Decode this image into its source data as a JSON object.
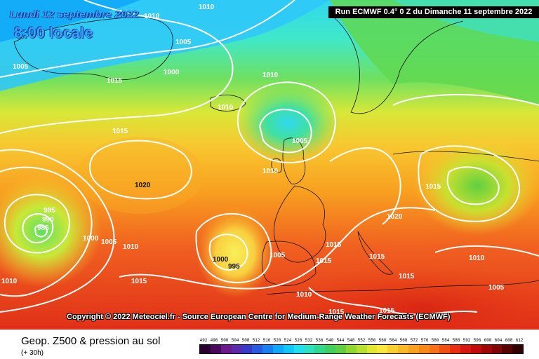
{
  "header": {
    "date": "Lundi 12 septembre 2022",
    "time": "8:00 locale",
    "run": "Run ECMWF 0.4° 0 Z du Dimanche 11 septembre 2022"
  },
  "copyright": "Copyright © 2022 Meteociel.fr - Source European Centre for Medium-Range Weather Forecasts (ECMWF)",
  "footer": {
    "title": "Geop. Z500 & pression au sol",
    "subtitle": "(+ 30h)"
  },
  "scale": {
    "labels": [
      "492",
      "496",
      "500",
      "504",
      "508",
      "512",
      "516",
      "520",
      "524",
      "528",
      "532",
      "536",
      "540",
      "544",
      "548",
      "552",
      "556",
      "560",
      "564",
      "568",
      "572",
      "576",
      "580",
      "584",
      "588",
      "592",
      "596",
      "600",
      "604",
      "608",
      "612"
    ],
    "colors": [
      "#2a0030",
      "#4a0a5c",
      "#6a1a8a",
      "#5a2aa8",
      "#3a3ac8",
      "#2a5ae0",
      "#1a80f0",
      "#10a8f8",
      "#10c8f8",
      "#20e0f0",
      "#30e0c0",
      "#30d890",
      "#40d060",
      "#60d040",
      "#90d830",
      "#b8e030",
      "#e0e830",
      "#f8e840",
      "#f8d030",
      "#f8b828",
      "#f8a020",
      "#f88818",
      "#f87018",
      "#f05010",
      "#e83010",
      "#d81810",
      "#c00c0c",
      "#a00808",
      "#800606",
      "#580404",
      "#300202"
    ]
  },
  "colors": {
    "label_blue": "#3aa0ff",
    "isobar": "#ffffff"
  },
  "isobars": [
    {
      "label": "1010"
    },
    {
      "label": "1010"
    },
    {
      "label": "1005"
    },
    {
      "label": "1005"
    },
    {
      "label": "1000"
    },
    {
      "label": "1015"
    },
    {
      "label": "1010"
    },
    {
      "label": "1010"
    },
    {
      "label": "1005"
    },
    {
      "label": "1015"
    },
    {
      "label": "1020"
    },
    {
      "label": "1010"
    },
    {
      "label": "995"
    },
    {
      "label": "990"
    },
    {
      "label": "985"
    },
    {
      "label": "1000"
    },
    {
      "label": "1005"
    },
    {
      "label": "1010"
    },
    {
      "label": "1010"
    },
    {
      "label": "1000"
    },
    {
      "label": "995"
    },
    {
      "label": "1005"
    },
    {
      "label": "1015"
    },
    {
      "label": "1015"
    },
    {
      "label": "1015"
    },
    {
      "label": "1020"
    },
    {
      "label": "1015"
    },
    {
      "label": "1015"
    },
    {
      "label": "1010"
    },
    {
      "label": "1015"
    },
    {
      "label": "1010"
    },
    {
      "label": "1015"
    },
    {
      "label": "1015"
    },
    {
      "label": "1005"
    }
  ]
}
